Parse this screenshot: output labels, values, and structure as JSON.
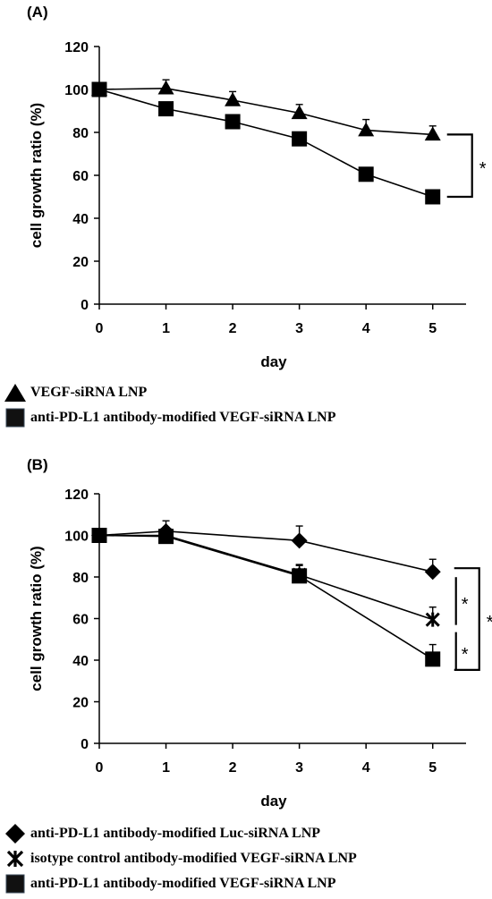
{
  "chart_data": [
    {
      "panel_label": "(A)",
      "type": "line",
      "xlabel": "day",
      "ylabel": "cell growth ratio (%)",
      "x": [
        0,
        1,
        2,
        3,
        4,
        5
      ],
      "xlim": [
        0,
        5.5
      ],
      "ylim": [
        0,
        120
      ],
      "xticks": [
        0,
        1,
        2,
        3,
        4,
        5
      ],
      "yticks": [
        0,
        20,
        40,
        60,
        80,
        100,
        120
      ],
      "grid": false,
      "legend_position": "bottom",
      "series": [
        {
          "name": "VEGF-siRNA LNP",
          "marker": "triangle",
          "x": [
            0,
            1,
            2,
            3,
            4,
            5
          ],
          "values": [
            100,
            100.5,
            95,
            89,
            81,
            79
          ],
          "error": [
            3,
            4,
            4,
            4,
            5,
            4
          ]
        },
        {
          "name": "anti-PD-L1 antibody-modified VEGF-siRNA LNP",
          "marker": "square",
          "x": [
            0,
            1,
            2,
            3,
            4,
            5
          ],
          "values": [
            100,
            91,
            85,
            77,
            60.5,
            50
          ],
          "error": [
            3,
            3,
            2,
            3,
            2,
            3
          ]
        }
      ],
      "annotations": [
        {
          "text": "*",
          "between": [
            "VEGF-siRNA LNP",
            "anti-PD-L1 antibody-modified VEGF-siRNA LNP"
          ],
          "at_x": 5
        }
      ]
    },
    {
      "panel_label": "(B)",
      "type": "line",
      "xlabel": "day",
      "ylabel": "cell growth ratio (%)",
      "x": [
        0,
        1,
        3,
        5
      ],
      "xlim": [
        0,
        5.5
      ],
      "ylim": [
        0,
        120
      ],
      "xticks": [
        0,
        1,
        2,
        3,
        4,
        5
      ],
      "yticks": [
        0,
        20,
        40,
        60,
        80,
        100,
        120
      ],
      "grid": false,
      "legend_position": "bottom",
      "series": [
        {
          "name": "anti-PD-L1 antibody-modified Luc-siRNA LNP",
          "marker": "diamond",
          "x": [
            0,
            1,
            3,
            5
          ],
          "values": [
            100,
            102,
            97.5,
            82.5
          ],
          "error": [
            2,
            5,
            7,
            6
          ]
        },
        {
          "name": "isotype control antibody-modified VEGF-siRNA LNP",
          "marker": "x-star",
          "x": [
            0,
            1,
            3,
            5
          ],
          "values": [
            100,
            100,
            81,
            59.5
          ],
          "error": [
            2,
            3,
            5,
            6
          ]
        },
        {
          "name": "anti-PD-L1 antibody-modified VEGF-siRNA LNP",
          "marker": "square",
          "x": [
            0,
            1,
            3,
            5
          ],
          "values": [
            100,
            99.5,
            80.5,
            40.5
          ],
          "error": [
            2,
            2,
            5,
            7
          ]
        }
      ],
      "annotations": [
        {
          "text": "*",
          "between": [
            "anti-PD-L1 antibody-modified Luc-siRNA LNP",
            "isotype control antibody-modified VEGF-siRNA LNP"
          ],
          "at_x": 5
        },
        {
          "text": "*",
          "between": [
            "isotype control antibody-modified VEGF-siRNA LNP",
            "anti-PD-L1 antibody-modified VEGF-siRNA LNP"
          ],
          "at_x": 5
        },
        {
          "text": "*",
          "between": [
            "anti-PD-L1 antibody-modified Luc-siRNA LNP",
            "anti-PD-L1 antibody-modified VEGF-siRNA LNP"
          ],
          "at_x": 5
        }
      ]
    }
  ]
}
